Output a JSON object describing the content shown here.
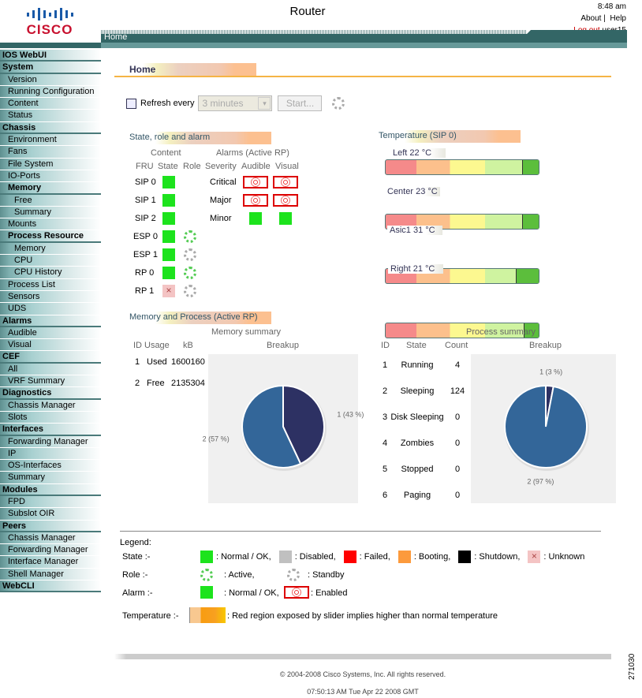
{
  "header": {
    "title": "Router",
    "logo": "CISCO",
    "time": "8:48 am",
    "about": "About",
    "sep": "|",
    "help": "Help",
    "logout": "Log out",
    "user": "user15",
    "nav_tab": "Home"
  },
  "sidebar": [
    {
      "label": "IOS WebUI",
      "type": "sec"
    },
    {
      "label": "System",
      "type": "sec"
    },
    {
      "label": "Version",
      "type": "item"
    },
    {
      "label": "Running Configuration",
      "type": "item"
    },
    {
      "label": "Content",
      "type": "item"
    },
    {
      "label": "Status",
      "type": "item"
    },
    {
      "label": "Chassis",
      "type": "sec"
    },
    {
      "label": "Environment",
      "type": "item"
    },
    {
      "label": "Fans",
      "type": "item"
    },
    {
      "label": "File System",
      "type": "item"
    },
    {
      "label": "IO-Ports",
      "type": "item"
    },
    {
      "label": "Memory",
      "type": "subsec"
    },
    {
      "label": "Free",
      "type": "subitem"
    },
    {
      "label": "Summary",
      "type": "subitem"
    },
    {
      "label": "Mounts",
      "type": "item"
    },
    {
      "label": "Process Resource",
      "type": "subsec"
    },
    {
      "label": "Memory",
      "type": "subitem"
    },
    {
      "label": "CPU",
      "type": "subitem"
    },
    {
      "label": "CPU History",
      "type": "subitem"
    },
    {
      "label": "Process List",
      "type": "item"
    },
    {
      "label": "Sensors",
      "type": "item"
    },
    {
      "label": "UDS",
      "type": "item"
    },
    {
      "label": "Alarms",
      "type": "sec"
    },
    {
      "label": "Audible",
      "type": "item"
    },
    {
      "label": "Visual",
      "type": "item"
    },
    {
      "label": "CEF",
      "type": "sec"
    },
    {
      "label": "All",
      "type": "item"
    },
    {
      "label": "VRF Summary",
      "type": "item"
    },
    {
      "label": "Diagnostics",
      "type": "sec"
    },
    {
      "label": "Chassis Manager",
      "type": "item"
    },
    {
      "label": "Slots",
      "type": "item"
    },
    {
      "label": "Interfaces",
      "type": "sec"
    },
    {
      "label": "Forwarding Manager",
      "type": "item"
    },
    {
      "label": "IP",
      "type": "item"
    },
    {
      "label": "OS-Interfaces",
      "type": "item"
    },
    {
      "label": "Summary",
      "type": "item"
    },
    {
      "label": "Modules",
      "type": "sec"
    },
    {
      "label": "FPD",
      "type": "item"
    },
    {
      "label": "Subslot OIR",
      "type": "item"
    },
    {
      "label": "Peers",
      "type": "sec"
    },
    {
      "label": "Chassis Manager",
      "type": "item"
    },
    {
      "label": "Forwarding Manager",
      "type": "item"
    },
    {
      "label": "Interface Manager",
      "type": "item"
    },
    {
      "label": "Shell Manager",
      "type": "item"
    },
    {
      "label": "WebCLI",
      "type": "sec"
    }
  ],
  "main": {
    "title": "Home",
    "refresh_label": "Refresh every",
    "refresh_checked": false,
    "refresh_value": "3 minutes",
    "start_label": "Start..."
  },
  "state": {
    "title": "State, role and alarm",
    "content_hdr": "Content",
    "alarms_hdr": "Alarms (Active RP)",
    "cols": [
      "FRU",
      "State",
      "Role"
    ],
    "alarm_cols": [
      "Severity",
      "Audible",
      "Visual"
    ],
    "frus": [
      {
        "name": "SIP 0",
        "state": "ok",
        "role": ""
      },
      {
        "name": "SIP 1",
        "state": "ok",
        "role": ""
      },
      {
        "name": "SIP 2",
        "state": "ok",
        "role": ""
      },
      {
        "name": "ESP 0",
        "state": "ok",
        "role": "active"
      },
      {
        "name": "ESP 1",
        "state": "ok",
        "role": "standby"
      },
      {
        "name": "RP 0",
        "state": "ok",
        "role": "active"
      },
      {
        "name": "RP 1",
        "state": "unknown",
        "role": "standby"
      }
    ],
    "alarms": [
      {
        "severity": "Critical",
        "audible": "enabled",
        "visual": "enabled"
      },
      {
        "severity": "Major",
        "audible": "enabled",
        "visual": "enabled"
      },
      {
        "severity": "Minor",
        "audible": "ok",
        "visual": "ok"
      }
    ]
  },
  "temperature": {
    "title": "Temperature (SIP 0)",
    "sensors": [
      {
        "label": "Left 22 °C",
        "slider_level": 0.89
      },
      {
        "label": "Center 23 °C",
        "slider_level": 0.89
      },
      {
        "label": "Asic1 31 °C",
        "slider_level": 0.85
      },
      {
        "label": "Right 21 °C",
        "slider_level": 0.9
      }
    ]
  },
  "memproc": {
    "title": "Memory and Process (Active RP)",
    "memory": {
      "title": "Memory summary",
      "cols": [
        "ID",
        "Usage",
        "kB"
      ],
      "breakup": "Breakup",
      "rows": [
        [
          "1",
          "Used",
          "1600160"
        ],
        [
          "2",
          "Free",
          "2135304"
        ]
      ]
    },
    "process": {
      "title": "Process summary",
      "cols": [
        "ID",
        "State",
        "Count"
      ],
      "breakup": "Breakup",
      "rows": [
        [
          "1",
          "Running",
          "4"
        ],
        [
          "2",
          "Sleeping",
          "124"
        ],
        [
          "3",
          "Disk Sleeping",
          "0"
        ],
        [
          "4",
          "Zombies",
          "0"
        ],
        [
          "5",
          "Stopped",
          "0"
        ],
        [
          "6",
          "Paging",
          "0"
        ]
      ]
    }
  },
  "chart_data": [
    {
      "type": "pie",
      "labels": [
        "1 (43 %)",
        "2 (57 %)"
      ],
      "values": [
        43,
        57
      ],
      "colors": [
        "#2d3163",
        "#336699"
      ]
    },
    {
      "type": "pie",
      "labels": [
        "1 (3 %)",
        "2 (97 %)"
      ],
      "values": [
        3,
        97
      ],
      "colors": [
        "#2d3163",
        "#336699"
      ]
    }
  ],
  "legend": {
    "title": "Legend:",
    "state_label": "State :-",
    "ok": ": Normal / OK,",
    "disabled": ": Disabled,",
    "failed": ": Failed,",
    "booting": ": Booting,",
    "shutdown": ": Shutdown,",
    "unknown": ": Unknown",
    "role_label": "Role :-",
    "active": ": Active,",
    "standby": ": Standby",
    "alarm_label": "Alarm :-",
    "alarm_ok": ": Normal / OK,",
    "enabled": ": Enabled",
    "temp_label": "Temperature :-",
    "temp_desc": ": Red region exposed by slider implies higher than normal temperature",
    "colors": {
      "ok": "#1de31d",
      "disabled": "#c0c0c0",
      "failed": "#ff0000",
      "booting": "#fc9a3c",
      "shutdown": "#000000",
      "unknown": "#f4c4c4"
    }
  },
  "footer": {
    "copyright": "© 2004-2008 Cisco Systems, Inc. All rights reserved.",
    "timestamp": "07:50:13 AM Tue Apr 22 2008 GMT",
    "figure_id": "271030"
  }
}
